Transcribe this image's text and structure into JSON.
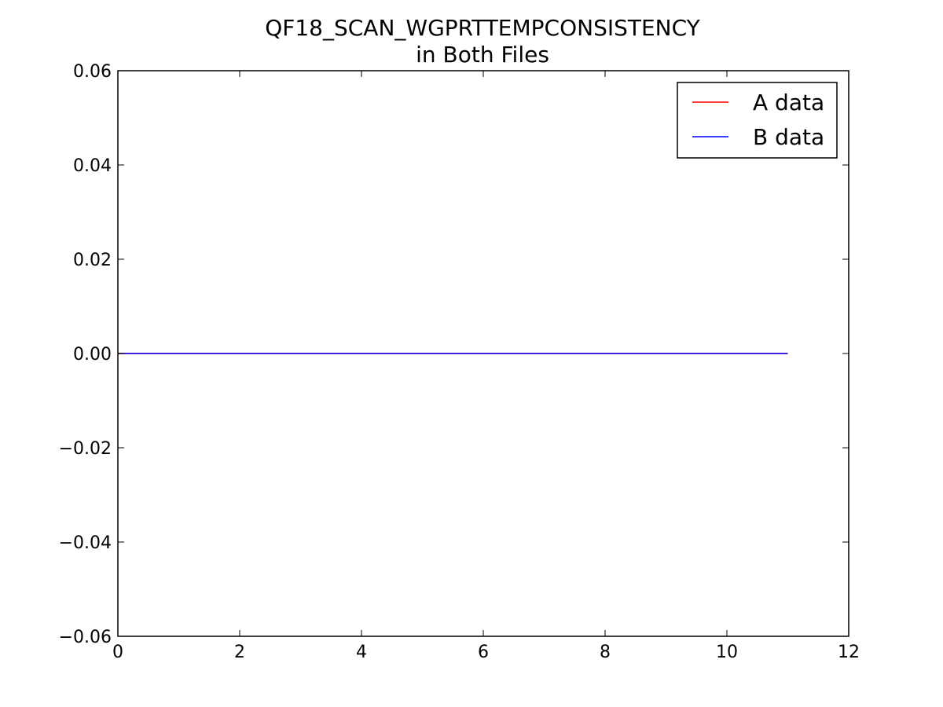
{
  "chart_data": {
    "type": "line",
    "title": "QF18_SCAN_WGPRTTEMPCONSISTENCY",
    "subtitle": "in Both Files",
    "xlabel": "",
    "ylabel": "",
    "xlim": [
      0,
      12
    ],
    "ylim": [
      -0.06,
      0.06
    ],
    "x_ticks": [
      "0",
      "2",
      "4",
      "6",
      "8",
      "10",
      "12"
    ],
    "y_ticks": [
      "−0.06",
      "−0.04",
      "−0.02",
      "0.00",
      "0.02",
      "0.04",
      "0.06"
    ],
    "x_tick_values": [
      0,
      2,
      4,
      6,
      8,
      10,
      12
    ],
    "y_tick_values": [
      -0.06,
      -0.04,
      -0.02,
      0.0,
      0.02,
      0.04,
      0.06
    ],
    "grid": false,
    "legend_position": "top-right",
    "series": [
      {
        "name": "A data",
        "color": "#ff0000",
        "x": [
          0,
          1,
          2,
          3,
          4,
          5,
          6,
          7,
          8,
          9,
          10,
          11
        ],
        "y": [
          0,
          0,
          0,
          0,
          0,
          0,
          0,
          0,
          0,
          0,
          0,
          0
        ]
      },
      {
        "name": "B data",
        "color": "#0000ff",
        "x": [
          0,
          1,
          2,
          3,
          4,
          5,
          6,
          7,
          8,
          9,
          10,
          11
        ],
        "y": [
          0,
          0,
          0,
          0,
          0,
          0,
          0,
          0,
          0,
          0,
          0,
          0
        ]
      }
    ]
  }
}
